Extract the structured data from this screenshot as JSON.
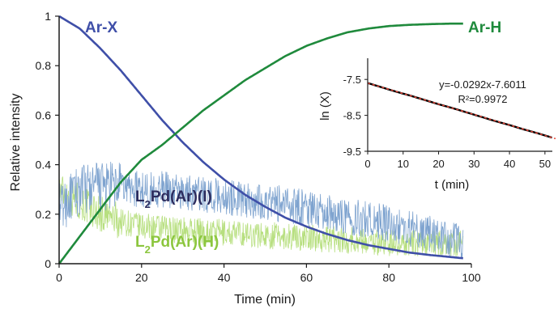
{
  "chart_data": [
    {
      "type": "line",
      "xlabel": "Time (min)",
      "ylabel": "Relative intensity",
      "xlim": [
        0,
        100
      ],
      "ylim": [
        0,
        1
      ],
      "xticks": [
        "0",
        "20",
        "40",
        "60",
        "80",
        "100"
      ],
      "yticks": [
        "0",
        "0.2",
        "0.4",
        "0.6",
        "0.8",
        "1"
      ],
      "grid": false,
      "series": [
        {
          "name": "Ar-X",
          "color": "#3f4fa8",
          "x": [
            0,
            5,
            10,
            15,
            20,
            25,
            30,
            35,
            40,
            45,
            50,
            55,
            60,
            65,
            70,
            75,
            80,
            85,
            90,
            95,
            98
          ],
          "y": [
            1.0,
            0.95,
            0.87,
            0.78,
            0.68,
            0.58,
            0.49,
            0.41,
            0.34,
            0.28,
            0.23,
            0.185,
            0.15,
            0.12,
            0.095,
            0.075,
            0.06,
            0.045,
            0.035,
            0.027,
            0.022
          ]
        },
        {
          "name": "Ar-H",
          "color": "#1f8a3c",
          "x": [
            0,
            5,
            10,
            15,
            20,
            25,
            30,
            35,
            40,
            45,
            50,
            55,
            60,
            65,
            70,
            75,
            80,
            85,
            90,
            95,
            98
          ],
          "y": [
            0.0,
            0.11,
            0.22,
            0.33,
            0.42,
            0.48,
            0.55,
            0.62,
            0.68,
            0.74,
            0.79,
            0.84,
            0.88,
            0.91,
            0.935,
            0.95,
            0.96,
            0.965,
            0.968,
            0.97,
            0.97
          ]
        },
        {
          "name": "L2Pd(Ar)(I)",
          "color": "#7ea3cf",
          "x": [
            0,
            5,
            10,
            15,
            20,
            25,
            30,
            35,
            40,
            45,
            50,
            55,
            60,
            65,
            70,
            75,
            80,
            85,
            90,
            95,
            98
          ],
          "y": [
            0.22,
            0.3,
            0.31,
            0.31,
            0.3,
            0.3,
            0.29,
            0.28,
            0.27,
            0.26,
            0.25,
            0.24,
            0.225,
            0.21,
            0.19,
            0.18,
            0.16,
            0.14,
            0.12,
            0.1,
            0.09
          ]
        },
        {
          "name": "L2Pd(Ar)(H)",
          "color": "#b7df7f",
          "x": [
            0,
            5,
            10,
            15,
            20,
            25,
            30,
            35,
            40,
            45,
            50,
            55,
            60,
            65,
            70,
            75,
            80,
            85,
            90,
            95,
            98
          ],
          "y": [
            0.3,
            0.25,
            0.2,
            0.17,
            0.15,
            0.14,
            0.135,
            0.13,
            0.125,
            0.12,
            0.115,
            0.11,
            0.105,
            0.1,
            0.095,
            0.09,
            0.085,
            0.08,
            0.08,
            0.08,
            0.08
          ]
        }
      ],
      "labels": {
        "arx": "Ar-X",
        "arh": "Ar-H",
        "pdi": {
          "main": "L",
          "sub": "2",
          "rest": "Pd(Ar)(I)"
        },
        "pdh": {
          "main": "L",
          "sub": "2",
          "rest": "Pd(Ar)(H)"
        }
      }
    },
    {
      "type": "scatter",
      "xlabel": "t (min)",
      "ylabel": "ln (X)",
      "xlim": [
        0,
        53
      ],
      "ylim": [
        -9.5,
        -7.0
      ],
      "xticks": [
        "0",
        "10",
        "20",
        "30",
        "40",
        "50"
      ],
      "yticks": [
        "-7.5",
        "-8.5",
        "-9.5"
      ],
      "series": [
        {
          "color": "#000000",
          "x": [
            0,
            4,
            8,
            12,
            16,
            20,
            24,
            28,
            32,
            36,
            40,
            44,
            48,
            52
          ],
          "y": [
            -7.6,
            -7.72,
            -7.84,
            -7.95,
            -8.07,
            -8.19,
            -8.3,
            -8.42,
            -8.54,
            -8.66,
            -8.77,
            -8.89,
            -9.0,
            -9.12
          ]
        }
      ],
      "fit": {
        "slope": -0.0292,
        "intercept": -7.6011,
        "color": "#e8483a"
      },
      "equation": "y=-0.0292x-7.6011",
      "r2": "R²=0.9972"
    }
  ]
}
